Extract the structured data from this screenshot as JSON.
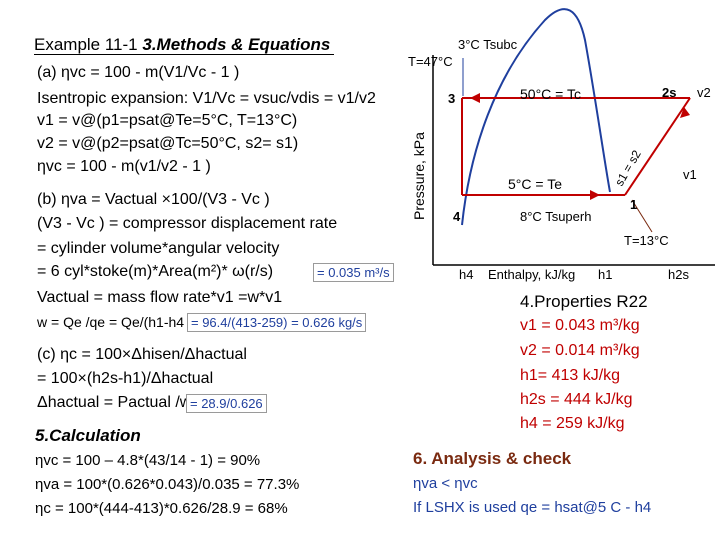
{
  "colors": {
    "red": "#c00000",
    "blue": "#1f3f9e",
    "brown": "#7a2a10",
    "dome": "#1f3f9e"
  },
  "title": {
    "example": "Example 11-1",
    "section": "3.Methods & Equations"
  },
  "methods": {
    "l1": "(a) ηvc = 100 - m(V1/Vc - 1 )",
    "l2": "Isentropic expansion: V1/Vc = vsuc/vdis = v1/v2",
    "l3": "v1 = v@(p1=psat@Te=5°C, T=13°C)",
    "l4": "v2 = v@(p2=psat@Tc=50°C, s2= s1)",
    "l5": "ηvc = 100 - m(v1/v2 - 1 )",
    "l6": "(b) ηva = Vactual ×100/(V3 - Vc )",
    "l7": "(V3 - Vc ) = compressor displacement rate",
    "l8": "= cylinder volume*angular velocity",
    "l9": "= 6 cyl*stoke(m)*Area(m²)* ω(r/s)",
    "l9_result": "= 0.035 m³/s",
    "l10": "Vactual = mass flow rate*v1 =w*v1",
    "l11": "w = Qe /qe = Qe/(h1-h4",
    "l11_result": "= 96.4/(413-259) = 0.626 kg/s",
    "l12": "(c) ηc = 100×Δhisen/Δhactual",
    "l13": "= 100×(h2s-h1)/Δhactual",
    "l14": "Δhactual = Pactual /w",
    "l14_result": "= 28.9/0.626"
  },
  "calculation": {
    "heading": "5.Calculation",
    "c1": "ηvc = 100 – 4.8*(43/14 - 1) = 90%",
    "c2": "ηva = 100*(0.626*0.043)/0.035 = 77.3%",
    "c3": "ηc = 100*(444-413)*0.626/28.9 = 68%"
  },
  "diagram": {
    "ylabel": "Pressure, kPa",
    "xlabel": "Enthalpy, kJ/kg",
    "subcool": "3°C Tsubc",
    "t47": "T=47°C",
    "tc": "50°C = Tc",
    "te": "5°C = Te",
    "superheat": "8°C Tsuperh",
    "t13": "T=13°C",
    "s_label": "s1 = s2",
    "v2": "v2",
    "v1": "v1",
    "state2s": "2s",
    "state1": "1",
    "state3": "3",
    "state4": "4",
    "h4": "h4",
    "h1": "h1",
    "h2s": "h2s"
  },
  "properties": {
    "heading": "4.Properties R22",
    "p1": "v1 = 0.043 m³/kg",
    "p2": "v2 = 0.014 m³/kg",
    "p3": "h1= 413 kJ/kg",
    "p4": "h2s = 444 kJ/kg",
    "p5": "h4 = 259 kJ/kg"
  },
  "analysis": {
    "heading": "6. Analysis & check",
    "a1": "ηva < ηvc",
    "a2": "If LSHX is used qe = hsat@5 C - h4"
  }
}
